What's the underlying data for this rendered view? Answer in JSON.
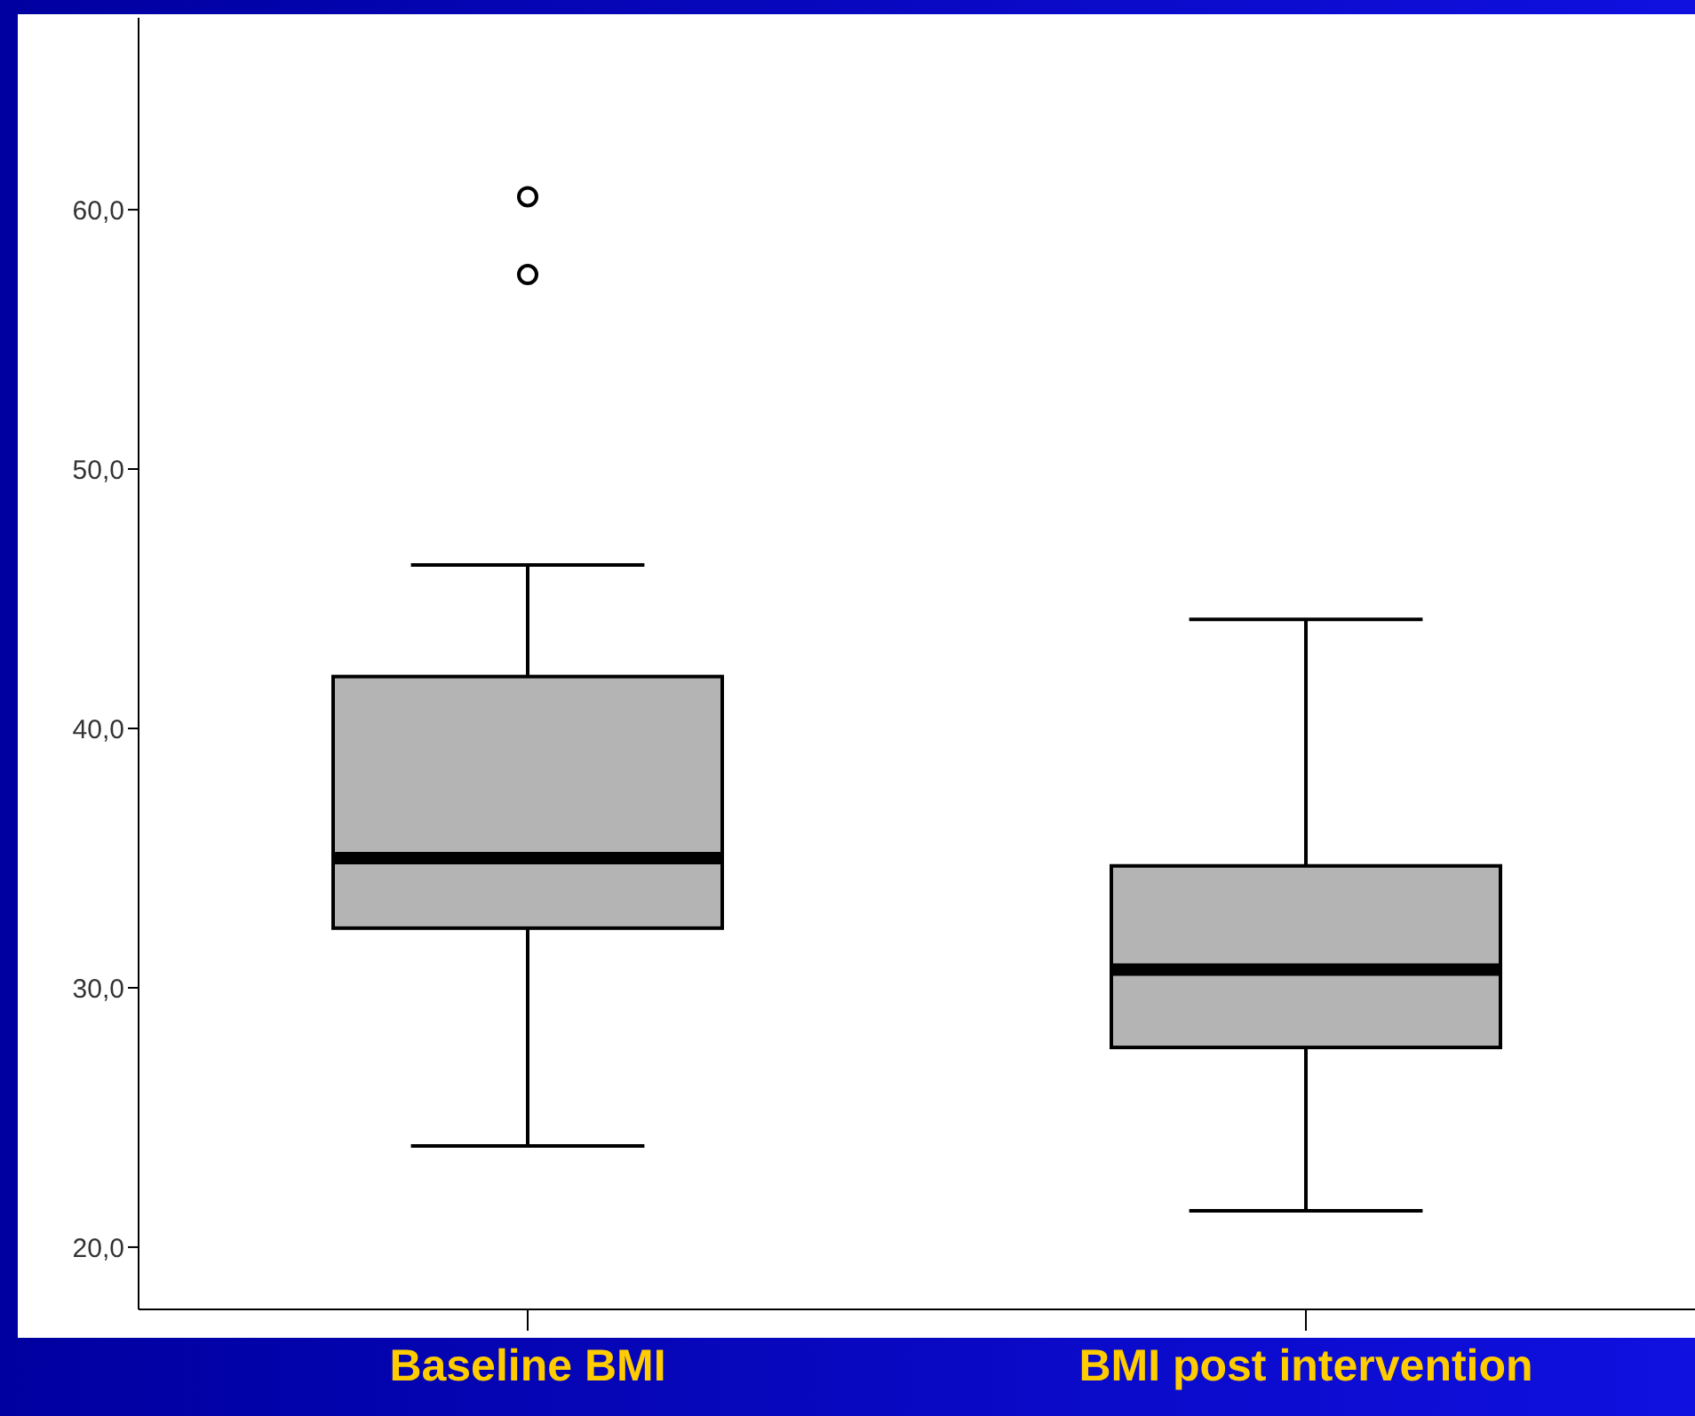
{
  "chart_data": {
    "type": "box",
    "categories": [
      "Baseline BMI",
      "BMI post intervention"
    ],
    "boxes": [
      {
        "low": 23.9,
        "q1": 32.3,
        "median": 35.0,
        "q3": 42.0,
        "high": 46.3,
        "outliers": [
          57.5,
          60.5
        ]
      },
      {
        "low": 21.4,
        "q1": 27.7,
        "median": 30.7,
        "q3": 34.7,
        "high": 44.2
      }
    ],
    "color": "#b4b4b4",
    "ylim": [
      17.6,
      67.4
    ],
    "yticks": [
      {
        "value": 20,
        "label": "20,0"
      },
      {
        "value": 30,
        "label": "30,0"
      },
      {
        "value": 40,
        "label": "40,0"
      },
      {
        "value": 50,
        "label": "50,0"
      },
      {
        "value": 60,
        "label": "60,0"
      }
    ]
  }
}
